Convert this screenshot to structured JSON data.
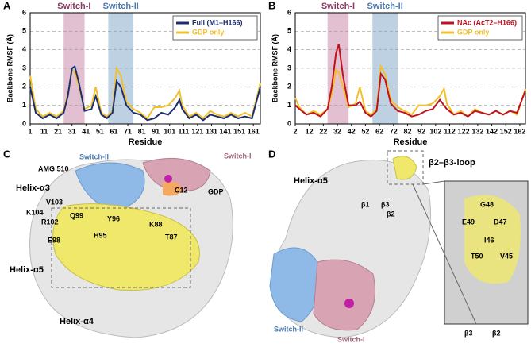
{
  "chart_data": [
    {
      "panel": "A",
      "type": "line",
      "ylabel": "Backbone RMSF (Å)",
      "xlabel": "Residue",
      "x": [
        1,
        5,
        10,
        15,
        20,
        25,
        28,
        31,
        33,
        36,
        40,
        45,
        48,
        52,
        56,
        60,
        63,
        66,
        70,
        75,
        80,
        85,
        90,
        95,
        100,
        105,
        108,
        110,
        115,
        120,
        125,
        130,
        135,
        140,
        145,
        150,
        155,
        160,
        166
      ],
      "xlim": [
        1,
        166
      ],
      "xticks": [
        1,
        11,
        21,
        31,
        41,
        51,
        61,
        71,
        81,
        91,
        101,
        111,
        121,
        131,
        141,
        151,
        161
      ],
      "ylim": [
        0,
        6
      ],
      "yticks": [
        0,
        1,
        2,
        3,
        4,
        5,
        6
      ],
      "grid": true,
      "legend": "upper right",
      "regions": [
        {
          "label": "Switch-I",
          "start": 25,
          "end": 40,
          "color": "#dcb0c6"
        },
        {
          "label": "Switch-II",
          "start": 57,
          "end": 75,
          "color": "#adc5dc"
        }
      ],
      "series": [
        {
          "name": "Full (M1–H166)",
          "color": "#1b2f6e",
          "values": [
            2.0,
            0.6,
            0.3,
            0.5,
            0.3,
            0.6,
            1.5,
            3.0,
            3.1,
            2.2,
            0.7,
            0.8,
            1.5,
            0.5,
            0.3,
            0.6,
            2.3,
            2.0,
            1.0,
            0.6,
            0.5,
            0.2,
            0.3,
            0.6,
            0.5,
            0.9,
            1.3,
            0.8,
            0.3,
            0.5,
            0.2,
            0.5,
            0.4,
            0.3,
            0.5,
            0.3,
            0.4,
            0.3,
            2.0
          ]
        },
        {
          "name": "GDP only",
          "color": "#f3c02c",
          "values": [
            2.6,
            0.8,
            0.4,
            0.6,
            0.4,
            0.7,
            1.6,
            2.9,
            2.8,
            2.0,
            0.8,
            1.0,
            2.0,
            0.6,
            0.4,
            0.7,
            3.0,
            2.6,
            1.2,
            0.8,
            0.6,
            0.3,
            0.9,
            0.9,
            1.0,
            1.4,
            1.8,
            1.0,
            0.4,
            0.6,
            0.3,
            0.7,
            0.5,
            0.4,
            0.6,
            0.4,
            0.6,
            0.4,
            2.2
          ]
        }
      ]
    },
    {
      "panel": "B",
      "type": "line",
      "ylabel": "Backbone RMSF (Å)",
      "xlabel": "Residue",
      "x": [
        2,
        5,
        10,
        15,
        20,
        25,
        28,
        31,
        33,
        36,
        40,
        45,
        48,
        52,
        56,
        60,
        63,
        66,
        70,
        75,
        80,
        85,
        90,
        95,
        100,
        105,
        108,
        110,
        115,
        120,
        125,
        130,
        135,
        140,
        145,
        150,
        155,
        160,
        166
      ],
      "xlim": [
        2,
        166
      ],
      "xticks": [
        2,
        12,
        22,
        32,
        42,
        52,
        62,
        72,
        82,
        92,
        102,
        112,
        122,
        132,
        142,
        152,
        162
      ],
      "ylim": [
        0,
        6
      ],
      "yticks": [
        0,
        1,
        2,
        3,
        4,
        5,
        6
      ],
      "grid": true,
      "legend": "upper right",
      "regions": [
        {
          "label": "Switch-I",
          "start": 25,
          "end": 40,
          "color": "#dcb0c6"
        },
        {
          "label": "Switch-II",
          "start": 57,
          "end": 75,
          "color": "#adc5dc"
        }
      ],
      "series": [
        {
          "name": "NAc (AcT2–H166)",
          "color": "#c0121c",
          "values": [
            1.0,
            0.8,
            0.5,
            0.6,
            0.4,
            0.8,
            2.0,
            3.8,
            4.3,
            2.6,
            1.0,
            1.0,
            1.2,
            0.6,
            0.4,
            0.7,
            2.7,
            2.4,
            1.1,
            0.7,
            0.6,
            0.4,
            0.5,
            0.7,
            0.8,
            1.3,
            1.0,
            0.8,
            0.5,
            0.6,
            0.4,
            0.7,
            0.6,
            0.5,
            0.7,
            0.5,
            0.7,
            0.6,
            1.8
          ]
        },
        {
          "name": "GDP only",
          "color": "#f3c02c",
          "values": [
            1.4,
            0.9,
            0.5,
            0.7,
            0.5,
            0.8,
            1.6,
            2.9,
            2.8,
            2.0,
            0.9,
            1.1,
            2.0,
            0.7,
            0.5,
            0.8,
            3.1,
            2.7,
            1.3,
            0.9,
            0.7,
            0.5,
            1.0,
            1.0,
            1.1,
            1.5,
            1.9,
            1.1,
            0.5,
            0.7,
            0.4,
            0.8,
            0.6,
            0.5,
            0.7,
            0.5,
            0.7,
            0.5,
            1.9
          ]
        }
      ]
    }
  ],
  "panel_c": {
    "letter": "C",
    "labels": [
      "AMG 510",
      "Switch-II",
      "Switch-I",
      "Helix-α3",
      "V103",
      "K104",
      "R102",
      "Q99",
      "Y96",
      "K88",
      "T87",
      "E98",
      "H95",
      "C12",
      "GDP",
      "Helix-α5",
      "Helix-α4"
    ]
  },
  "panel_d": {
    "letter": "D",
    "labels": [
      "Helix-α5",
      "β1",
      "β3",
      "β2",
      "β2–β3-loop",
      "Switch-II",
      "Switch-I",
      "G48",
      "E49",
      "D47",
      "I46",
      "T50",
      "V45",
      "β3",
      "β2"
    ]
  }
}
